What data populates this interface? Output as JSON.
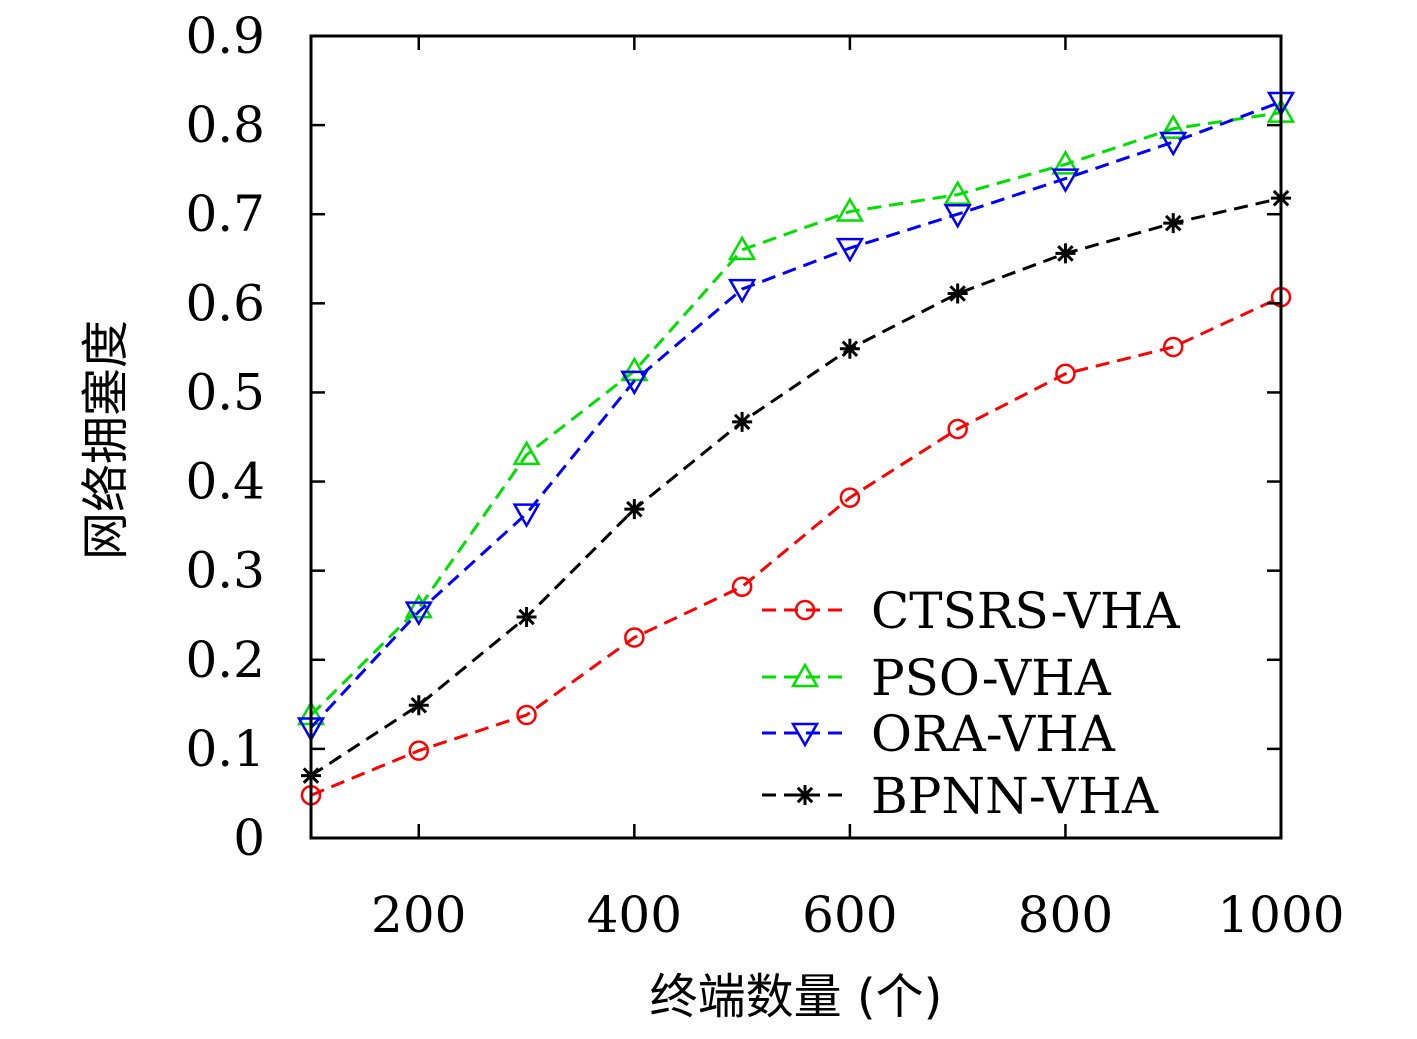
{
  "chart_data": {
    "type": "line",
    "title": "",
    "xlabel": "终端数量 (个)",
    "ylabel": "网络拥塞度",
    "xlim": [
      100,
      1000
    ],
    "ylim": [
      0,
      0.9
    ],
    "xticks": [
      200,
      400,
      600,
      800,
      1000
    ],
    "xtick_labels": [
      "200",
      "400",
      "600",
      "800",
      "1000"
    ],
    "yticks": [
      0,
      0.1,
      0.2,
      0.3,
      0.4,
      0.5,
      0.6,
      0.7,
      0.8,
      0.9
    ],
    "ytick_labels": [
      "0",
      "0.1",
      "0.2",
      "0.3",
      "0.4",
      "0.5",
      "0.6",
      "0.7",
      "0.8",
      "0.9"
    ],
    "grid": false,
    "legend_position": "bottom-right",
    "x": [
      100,
      200,
      300,
      400,
      500,
      600,
      700,
      800,
      900,
      1000
    ],
    "series": [
      {
        "name": "CTSRS-VHA",
        "color": "#ff0000",
        "marker": "circle",
        "values": [
          0.048,
          0.098,
          0.138,
          0.225,
          0.282,
          0.382,
          0.459,
          0.521,
          0.551,
          0.607
        ]
      },
      {
        "name": "PSO-VHA",
        "color": "#00e000",
        "marker": "triangle-up",
        "values": [
          0.138,
          0.258,
          0.43,
          0.524,
          0.66,
          0.703,
          0.722,
          0.756,
          0.796,
          0.814
        ]
      },
      {
        "name": "ORA-VHA",
        "color": "#0000ff",
        "marker": "triangle-down",
        "values": [
          0.124,
          0.254,
          0.364,
          0.513,
          0.616,
          0.662,
          0.7,
          0.74,
          0.781,
          0.826
        ]
      },
      {
        "name": "BPNN-VHA",
        "color": "#000000",
        "marker": "star",
        "values": [
          0.07,
          0.149,
          0.248,
          0.369,
          0.467,
          0.549,
          0.611,
          0.656,
          0.69,
          0.718
        ]
      }
    ]
  }
}
